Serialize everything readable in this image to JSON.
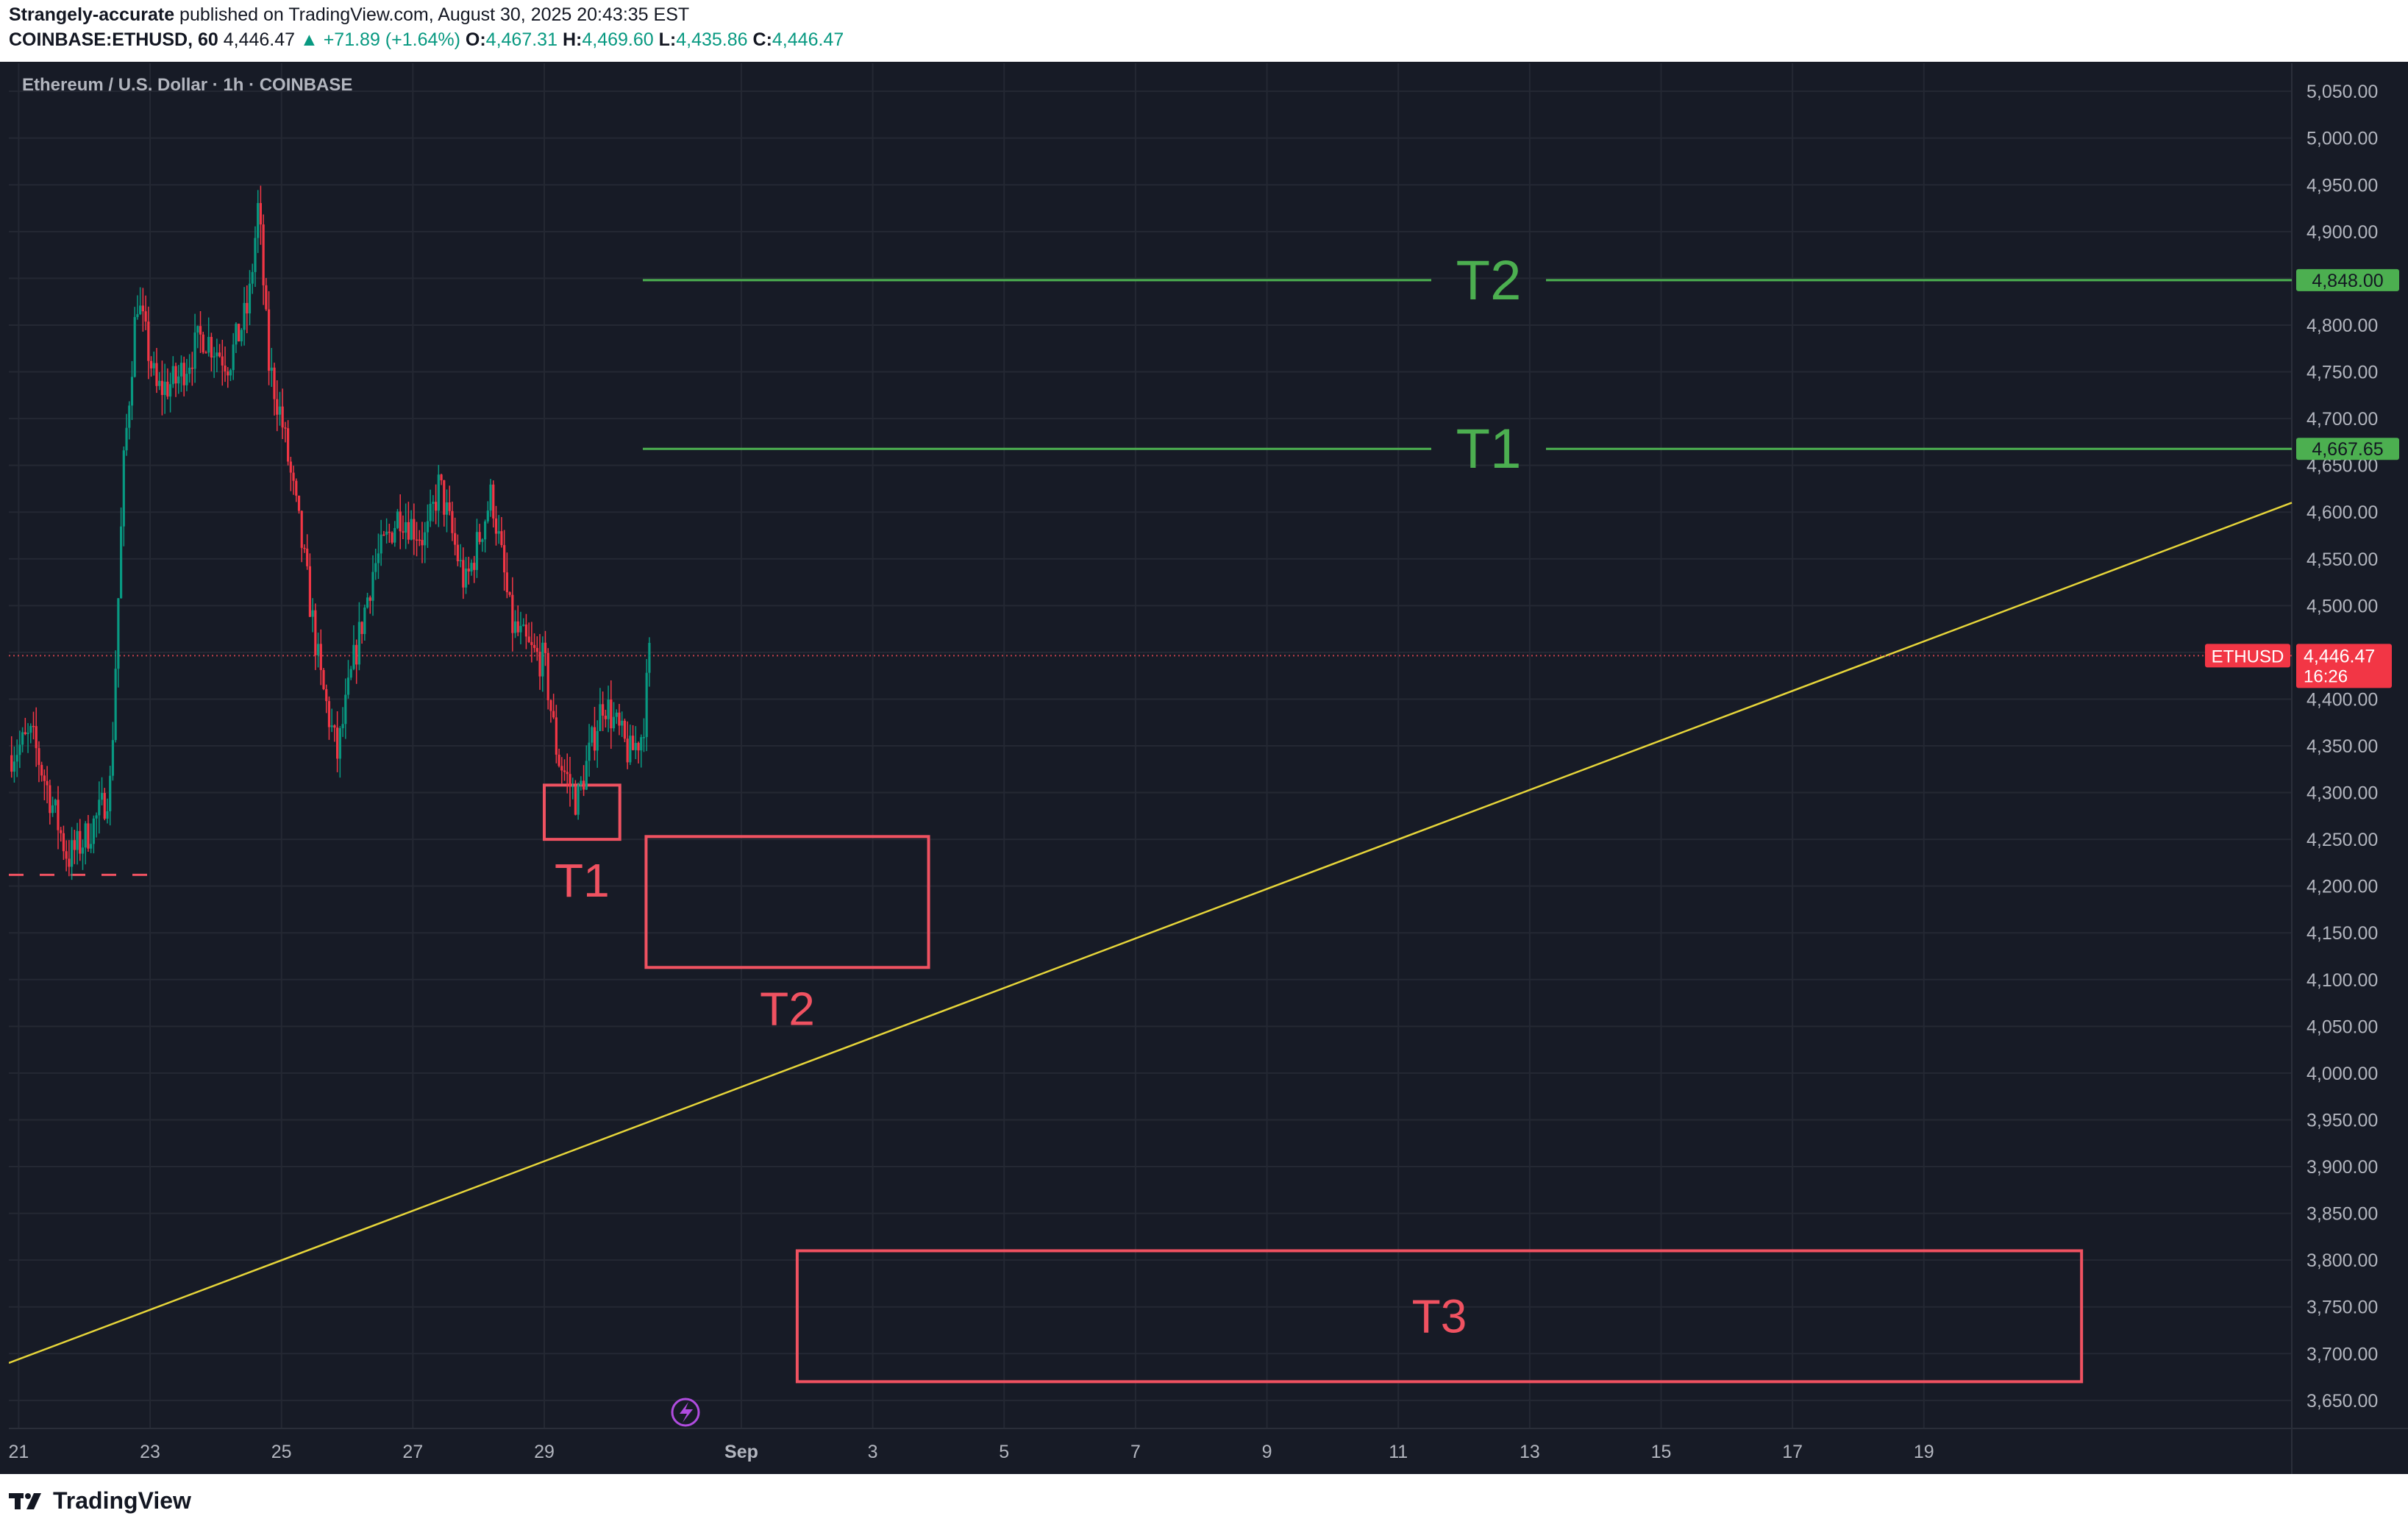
{
  "header": {
    "author": "Strangely-accurate",
    "published_text": " published on TradingView.com, August 30, 2025 20:43:35 EST",
    "symbol": "COINBASE:ETHUSD, 60",
    "last": "4,446.47",
    "change": "▲ +71.89 (+1.64%)",
    "open_label": "O:",
    "open_value": "4,467.31",
    "high_label": "H:",
    "high_value": "4,469.60",
    "low_label": "L:",
    "low_value": "4,435.86",
    "close_label": "C:",
    "close_value": "4,446.47"
  },
  "chart": {
    "symbol_title": "Ethereum / U.S. Dollar · 1h · COINBASE",
    "ticker": "ETHUSD",
    "countdown": "16:26"
  },
  "footer": {
    "brand": "TradingView",
    "logo_icon": "tradingview-logo-icon"
  },
  "colors": {
    "background": "#171b26",
    "grid": "#242833",
    "axis_text": "#b2b5be",
    "up": "#089981",
    "down": "#f23645",
    "target_green": "#4caf50",
    "target_red": "#f05261",
    "trendline": "#e6d53a"
  },
  "chart_data": {
    "type": "candlestick",
    "ylim": [
      3620,
      5080
    ],
    "y_ticks": [
      3650,
      3700,
      3750,
      3800,
      3850,
      3900,
      3950,
      4000,
      4050,
      4100,
      4150,
      4200,
      4250,
      4300,
      4350,
      4400,
      4450,
      4500,
      4550,
      4600,
      4650,
      4700,
      4750,
      4800,
      4850,
      4900,
      4950,
      5000,
      5050
    ],
    "y_tick_labels": [
      "3,650.00",
      "3,700.00",
      "3,750.00",
      "3,800.00",
      "3,850.00",
      "3,900.00",
      "3,950.00",
      "4,000.00",
      "4,050.00",
      "4,100.00",
      "4,150.00",
      "4,200.00",
      "4,250.00",
      "4,300.00",
      "4,350.00",
      "4,400.00",
      "4,450.00",
      "4,500.00",
      "4,550.00",
      "4,600.00",
      "4,650.00",
      "4,700.00",
      "4,750.00",
      "4,800.00",
      "4,850.00",
      "4,900.00",
      "4,950.00",
      "5,000.00",
      "5,050.00"
    ],
    "x_range_days": [
      20.85,
      55.6
    ],
    "x_ticks": [
      {
        "day": 21,
        "label": "21"
      },
      {
        "day": 23,
        "label": "23"
      },
      {
        "day": 25,
        "label": "25"
      },
      {
        "day": 27,
        "label": "27"
      },
      {
        "day": 29,
        "label": "29"
      },
      {
        "day": 32,
        "label": "Sep"
      },
      {
        "day": 34,
        "label": "3"
      },
      {
        "day": 36,
        "label": "5"
      },
      {
        "day": 38,
        "label": "7"
      },
      {
        "day": 40,
        "label": "9"
      },
      {
        "day": 42,
        "label": "11"
      },
      {
        "day": 44,
        "label": "13"
      },
      {
        "day": 46,
        "label": "15"
      },
      {
        "day": 48,
        "label": "17"
      },
      {
        "day": 50,
        "label": "19"
      }
    ],
    "price_path": [
      {
        "d": 20.85,
        "p": 4340
      },
      {
        "d": 21.2,
        "p": 4360
      },
      {
        "d": 21.5,
        "p": 4290
      },
      {
        "d": 21.75,
        "p": 4230
      },
      {
        "d": 22.0,
        "p": 4250
      },
      {
        "d": 22.25,
        "p": 4280
      },
      {
        "d": 22.4,
        "p": 4310
      },
      {
        "d": 22.6,
        "p": 4650
      },
      {
        "d": 22.8,
        "p": 4830
      },
      {
        "d": 23.1,
        "p": 4730
      },
      {
        "d": 23.4,
        "p": 4740
      },
      {
        "d": 23.8,
        "p": 4790
      },
      {
        "d": 24.2,
        "p": 4760
      },
      {
        "d": 24.5,
        "p": 4820
      },
      {
        "d": 24.65,
        "p": 4930
      },
      {
        "d": 24.8,
        "p": 4760
      },
      {
        "d": 25.0,
        "p": 4700
      },
      {
        "d": 25.3,
        "p": 4570
      },
      {
        "d": 25.6,
        "p": 4420
      },
      {
        "d": 25.85,
        "p": 4340
      },
      {
        "d": 26.1,
        "p": 4440
      },
      {
        "d": 26.4,
        "p": 4540
      },
      {
        "d": 26.8,
        "p": 4600
      },
      {
        "d": 27.2,
        "p": 4570
      },
      {
        "d": 27.4,
        "p": 4630
      },
      {
        "d": 27.8,
        "p": 4520
      },
      {
        "d": 28.2,
        "p": 4620
      },
      {
        "d": 28.5,
        "p": 4480
      },
      {
        "d": 28.8,
        "p": 4450
      },
      {
        "d": 29.0,
        "p": 4440
      },
      {
        "d": 29.2,
        "p": 4340
      },
      {
        "d": 29.5,
        "p": 4290
      },
      {
        "d": 29.9,
        "p": 4400
      },
      {
        "d": 30.3,
        "p": 4340
      },
      {
        "d": 30.5,
        "p": 4365
      },
      {
        "d": 30.6,
        "p": 4446.47
      }
    ],
    "trendline": {
      "from": {
        "d": 20.85,
        "p": 3690
      },
      "to": {
        "d": 55.6,
        "p": 4610
      }
    },
    "current_price": 4446.47,
    "current_label": "4,446.47",
    "support_line": {
      "price": 4212,
      "from": 20.85,
      "to": 23.2
    },
    "targets_up": [
      {
        "label": "T1",
        "price": 4667.65,
        "price_label": "4,667.65",
        "from": 30.5
      },
      {
        "label": "T2",
        "price": 4848.0,
        "price_label": "4,848.00",
        "from": 30.5
      }
    ],
    "targets_down": [
      {
        "label": "T1",
        "d0": 29.0,
        "d1": 30.15,
        "p_top": 4308,
        "p_bot": 4250,
        "label_pos": "below"
      },
      {
        "label": "T2",
        "d0": 30.55,
        "d1": 34.85,
        "p_top": 4253,
        "p_bot": 4113,
        "label_pos": "below"
      },
      {
        "label": "T3",
        "d0": 32.85,
        "d1": 52.4,
        "p_top": 3810,
        "p_bot": 3670,
        "label_pos": "center"
      }
    ]
  }
}
